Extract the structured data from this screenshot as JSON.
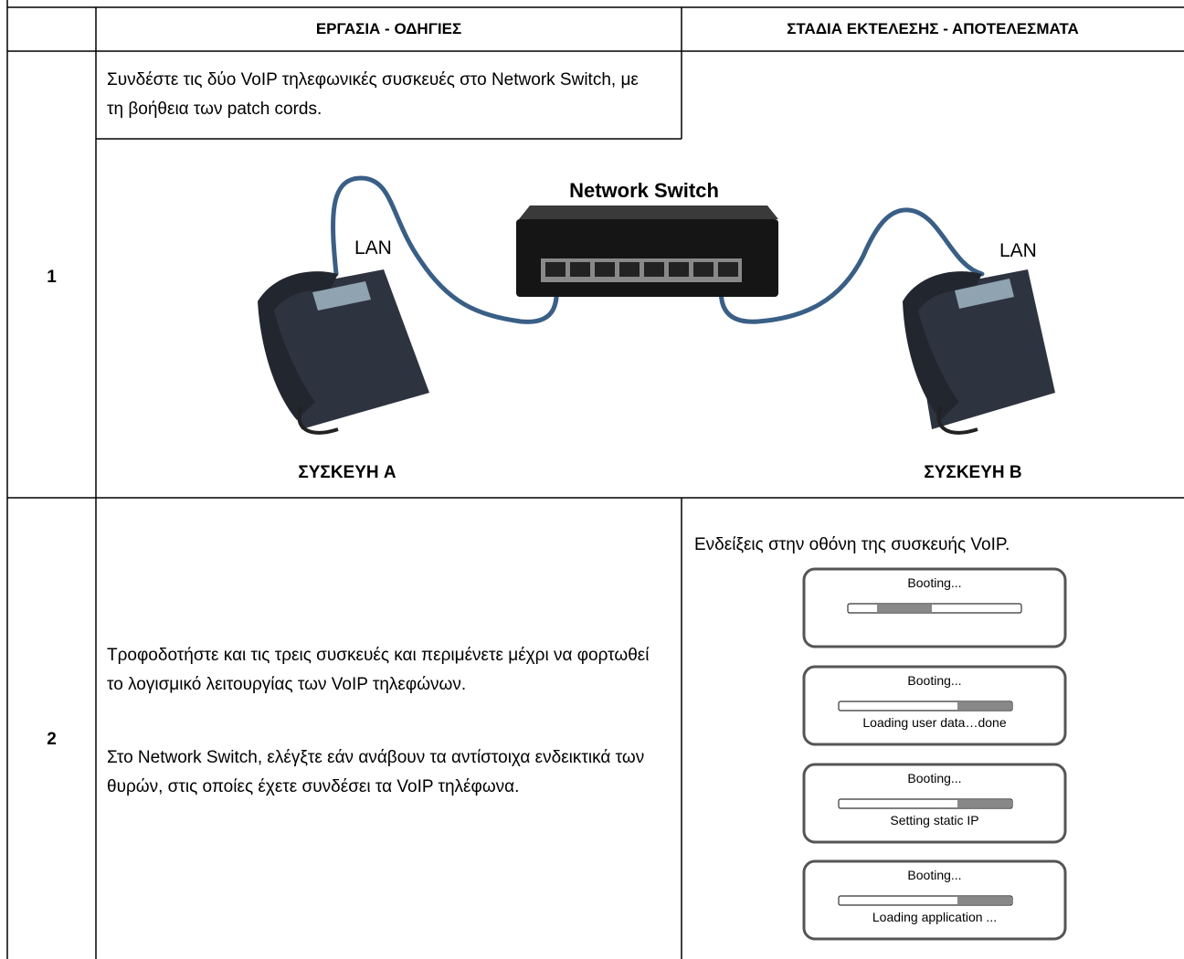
{
  "table": {
    "header": {
      "task": "ΕΡΓΑΣΙΑ - ΟΔΗΓΙΕΣ",
      "results": "ΣΤΑΔΙΑ ΕΚΤΕΛΕΣΗΣ - ΑΠΟΤΕΛΕΣΜΑΤΑ"
    },
    "rows": [
      {
        "number": "1",
        "instruction": "Συνδέστε τις δύο VoIP τηλεφωνικές συσκευές στο Network Switch, με τη βοήθεια των patch cords.",
        "diagram": {
          "switch_label": "Network Switch",
          "lan_left": "LAN",
          "lan_right": "LAN",
          "device_a": "ΣΥΣΚΕΥΗ A",
          "device_b": "ΣΥΣΚΕΥΗ B"
        }
      },
      {
        "number": "2",
        "instructions": [
          "Τροφοδοτήστε και τις τρεις συσκευές και περιμένετε μέχρι να φορτωθεί το λογισμικό λειτουργίας των VoIP τηλεφώνων.",
          "Στο Network Switch, ελέγξτε εάν ανάβουν τα αντίστοιχα ενδεικτικά των θυρών, στις οποίες έχετε συνδέσει τα VoIP τηλέφωνα."
        ],
        "result_caption": "Ενδείξεις στην οθόνη της συσκευής VoIP.",
        "screens": [
          {
            "title": "Booting..."
          },
          {
            "title": "Booting...",
            "status": "Loading user data…done"
          },
          {
            "title": "Booting...",
            "status": "Setting static IP"
          },
          {
            "title": "Booting...",
            "status": "Loading application ..."
          }
        ]
      }
    ]
  }
}
